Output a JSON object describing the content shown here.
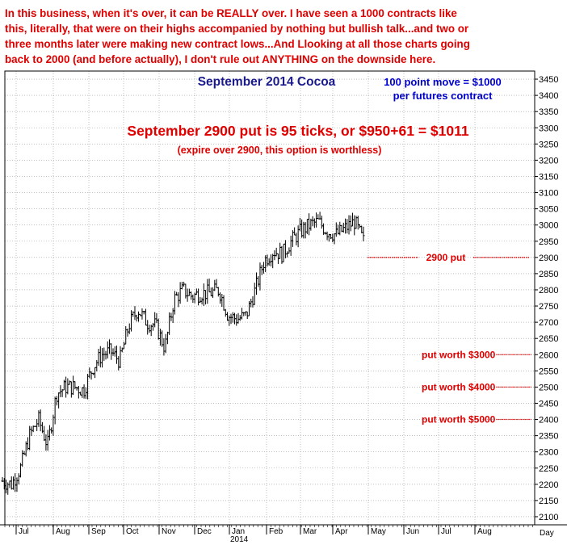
{
  "header": {
    "commentary_lines": [
      "In this business, when it's over, it can be REALLY over. I have seen a 1000 contracts like",
      "this, literally, that were on their highs accompanied by nothing but bullish talk...and two or",
      "three months later were making new contract lows...And Llooking at all those charts going",
      "back to 2000 (and before actually), I don't rule out ANYTHING on the downside here."
    ]
  },
  "annotations": {
    "move_note_line1": "100 point move = $1000",
    "move_note_line2": "per futures contract",
    "put_headline": "September 2900 put is 95 ticks, or $950+61 = $1011",
    "put_subline": "(expire over 2900, this option is worthless)"
  },
  "colors": {
    "red": "#e00000",
    "navy": "#1a1a8c",
    "blue": "#0000cc",
    "grid": "#999999",
    "bar": "#000000"
  },
  "chart_data": {
    "type": "ohlc_bar",
    "title": "September 2014 Cocoa",
    "ylim": [
      2075,
      3475
    ],
    "y_ticks": [
      2100,
      2150,
      2200,
      2250,
      2300,
      2350,
      2400,
      2450,
      2500,
      2550,
      2600,
      2650,
      2700,
      2750,
      2800,
      2850,
      2900,
      2950,
      3000,
      3050,
      3100,
      3150,
      3200,
      3250,
      3300,
      3350,
      3400,
      3450
    ],
    "x_ticks": [
      "Jul",
      "Aug",
      "Sep",
      "Oct",
      "Nov",
      "Dec",
      "Jan",
      "Feb",
      "Mar",
      "Apr",
      "May",
      "Jun",
      "Jul",
      "Aug"
    ],
    "x_axis_year": "2014",
    "x_axis_unit": "Day",
    "approx_weekly_closes": [
      {
        "week": "Jul-1",
        "close": 2210
      },
      {
        "week": "Jul-2",
        "close": 2200
      },
      {
        "week": "Jul-3",
        "close": 2250
      },
      {
        "week": "Jul-4",
        "close": 2350
      },
      {
        "week": "Jul-5",
        "close": 2400
      },
      {
        "week": "Aug-1",
        "close": 2320
      },
      {
        "week": "Aug-2",
        "close": 2480
      },
      {
        "week": "Aug-3",
        "close": 2500
      },
      {
        "week": "Aug-4",
        "close": 2500
      },
      {
        "week": "Sep-1",
        "close": 2490
      },
      {
        "week": "Sep-2",
        "close": 2560
      },
      {
        "week": "Sep-3",
        "close": 2600
      },
      {
        "week": "Sep-4",
        "close": 2610
      },
      {
        "week": "Oct-1",
        "close": 2580
      },
      {
        "week": "Oct-2",
        "close": 2690
      },
      {
        "week": "Oct-3",
        "close": 2740
      },
      {
        "week": "Oct-4",
        "close": 2700
      },
      {
        "week": "Nov-1",
        "close": 2690
      },
      {
        "week": "Nov-2",
        "close": 2620
      },
      {
        "week": "Nov-3",
        "close": 2770
      },
      {
        "week": "Nov-4",
        "close": 2800
      },
      {
        "week": "Dec-1",
        "close": 2780
      },
      {
        "week": "Dec-2",
        "close": 2790
      },
      {
        "week": "Dec-3",
        "close": 2790
      },
      {
        "week": "Dec-4",
        "close": 2800
      },
      {
        "week": "Jan-1",
        "close": 2720
      },
      {
        "week": "Jan-2",
        "close": 2710
      },
      {
        "week": "Jan-3",
        "close": 2720
      },
      {
        "week": "Jan-4",
        "close": 2800
      },
      {
        "week": "Feb-1",
        "close": 2890
      },
      {
        "week": "Feb-2",
        "close": 2920
      },
      {
        "week": "Feb-3",
        "close": 2910
      },
      {
        "week": "Feb-4",
        "close": 2950
      },
      {
        "week": "Mar-1",
        "close": 2980
      },
      {
        "week": "Mar-2",
        "close": 3000
      },
      {
        "week": "Mar-3",
        "close": 3010
      },
      {
        "week": "Mar-4",
        "close": 2980
      },
      {
        "week": "Apr-1",
        "close": 2970
      },
      {
        "week": "Apr-2",
        "close": 2990
      },
      {
        "week": "Apr-3",
        "close": 3010
      },
      {
        "week": "Apr-4",
        "close": 2950
      }
    ],
    "reference_lines": [
      {
        "label": "2900 put",
        "value": 2900
      },
      {
        "label": "put worth $3000",
        "value": 2600
      },
      {
        "label": "put worth $4000",
        "value": 2500
      },
      {
        "label": "put worth $5000",
        "value": 2400
      }
    ]
  }
}
